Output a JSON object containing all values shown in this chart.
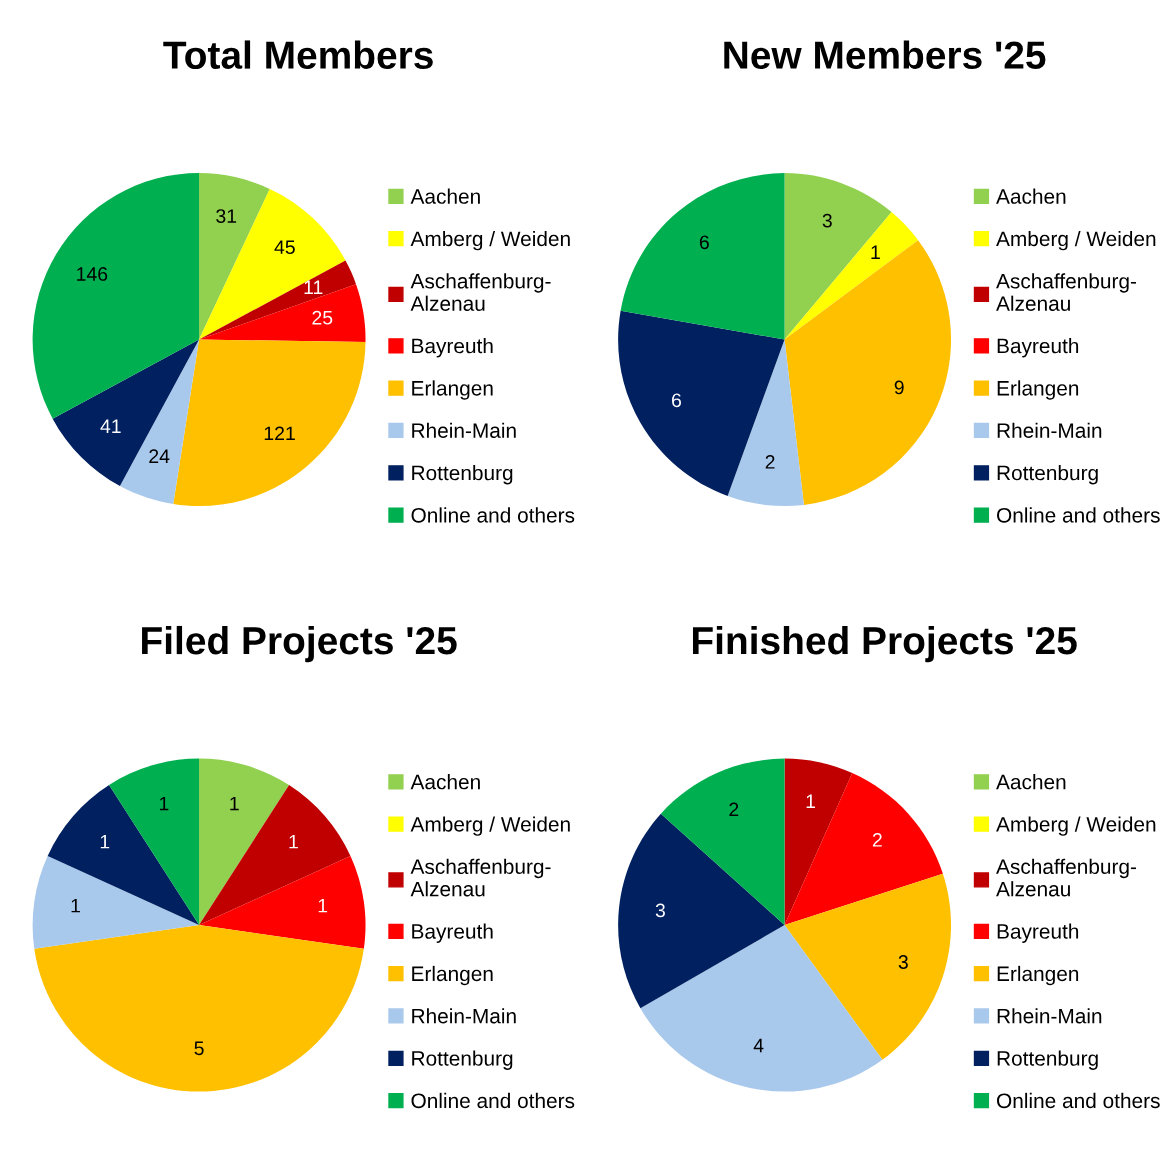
{
  "chart_data": [
    {
      "type": "pie",
      "title": "Total Members",
      "categories": [
        "Aachen",
        "Amberg / Weiden",
        "Aschaffenburg-Alzenau",
        "Bayreuth",
        "Erlangen",
        "Rhein-Main",
        "Rottenburg",
        "Online and others"
      ],
      "values": [
        31,
        45,
        11,
        25,
        121,
        24,
        41,
        146
      ],
      "colors": [
        "#92d050",
        "#ffff00",
        "#c00000",
        "#ff0000",
        "#ffc000",
        "#a9c9ec",
        "#002060",
        "#00b050"
      ],
      "data_labels": true,
      "legend": "right"
    },
    {
      "type": "pie",
      "title": "New Members '25",
      "categories": [
        "Aachen",
        "Amberg / Weiden",
        "Aschaffenburg-Alzenau",
        "Bayreuth",
        "Erlangen",
        "Rhein-Main",
        "Rottenburg",
        "Online and others"
      ],
      "values": [
        3,
        1,
        0,
        0,
        9,
        2,
        6,
        6
      ],
      "value_labels": [
        "3",
        "1",
        null,
        null,
        "9",
        "2",
        "6",
        "6"
      ],
      "colors": [
        "#92d050",
        "#ffff00",
        "#c00000",
        "#ff0000",
        "#ffc000",
        "#a9c9ec",
        "#002060",
        "#00b050"
      ],
      "legend": "right"
    },
    {
      "type": "pie",
      "title": "Filed Projects '25",
      "categories": [
        "Aachen",
        "Amberg / Weiden",
        "Aschaffenburg-Alzenau",
        "Bayreuth",
        "Erlangen",
        "Rhein-Main",
        "Rottenburg",
        "Online and others"
      ],
      "values": [
        1,
        0,
        1,
        1,
        5,
        1,
        1,
        1
      ],
      "value_labels": [
        "1",
        null,
        "1",
        "1",
        "5",
        "1",
        "1",
        "1"
      ],
      "colors": [
        "#92d050",
        "#ffff00",
        "#c00000",
        "#ff0000",
        "#ffc000",
        "#a9c9ec",
        "#002060",
        "#00b050"
      ],
      "legend": "right"
    },
    {
      "type": "pie",
      "title": "Finished Projects '25",
      "categories": [
        "Aachen",
        "Amberg / Weiden",
        "Aschaffenburg-Alzenau",
        "Bayreuth",
        "Erlangen",
        "Rhein-Main",
        "Rottenburg",
        "Online and others"
      ],
      "values": [
        0,
        0,
        1,
        2,
        3,
        4,
        3,
        2
      ],
      "value_labels": [
        null,
        null,
        "1",
        "2",
        "3",
        "4",
        "3",
        "2"
      ],
      "colors": [
        "#92d050",
        "#ffff00",
        "#c00000",
        "#ff0000",
        "#ffc000",
        "#a9c9ec",
        "#002060",
        "#00b050"
      ],
      "legend": "right"
    }
  ]
}
